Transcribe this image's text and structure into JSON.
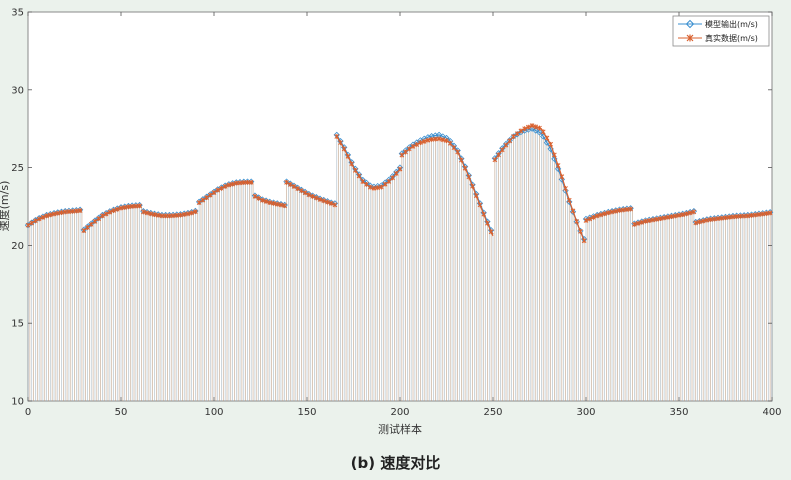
{
  "caption": "(b) 速度对比",
  "chart_data": {
    "type": "line",
    "xlabel": "测试样本",
    "ylabel": "速度(m/s)",
    "xlim": [
      0,
      400
    ],
    "ylim": [
      10,
      35
    ],
    "xticks": [
      0,
      50,
      100,
      150,
      200,
      250,
      300,
      350,
      400
    ],
    "yticks": [
      10,
      15,
      20,
      25,
      30,
      35
    ],
    "grid": false,
    "legend_position": "top-right",
    "series": [
      {
        "name": "模型输出(m/s)",
        "color": "#3a8fd0",
        "marker": "diamond",
        "segments": [
          {
            "x": [
              0,
              5,
              10,
              15,
              20,
              25,
              29
            ],
            "y": [
              21.3,
              21.7,
              21.95,
              22.1,
              22.2,
              22.25,
              22.3
            ]
          },
          {
            "x": [
              30,
              35,
              40,
              45,
              50,
              55,
              61
            ],
            "y": [
              21.0,
              21.5,
              21.95,
              22.25,
              22.45,
              22.55,
              22.6
            ]
          },
          {
            "x": [
              62,
              67,
              72,
              77,
              82,
              87,
              91
            ],
            "y": [
              22.2,
              22.05,
              21.95,
              21.95,
              22.0,
              22.1,
              22.25
            ]
          },
          {
            "x": [
              92,
              97,
              102,
              107,
              112,
              117,
              121
            ],
            "y": [
              22.8,
              23.2,
              23.6,
              23.9,
              24.05,
              24.1,
              24.1
            ]
          },
          {
            "x": [
              122,
              126,
              130,
              134,
              138
            ],
            "y": [
              23.2,
              22.95,
              22.8,
              22.7,
              22.6
            ]
          },
          {
            "x": [
              139,
              145,
              151,
              157,
              163,
              165
            ],
            "y": [
              24.1,
              23.7,
              23.3,
              23.0,
              22.75,
              22.7
            ]
          },
          {
            "x": [
              166,
              170,
              175,
              180,
              185,
              190,
              195,
              200
            ],
            "y": [
              27.1,
              26.3,
              25.1,
              24.2,
              23.75,
              23.85,
              24.3,
              25.0
            ]
          },
          {
            "x": [
              201,
              206,
              211,
              216,
              221,
              226,
              231,
              236,
              241,
              246,
              250
            ],
            "y": [
              25.9,
              26.4,
              26.75,
              27.0,
              27.1,
              26.85,
              26.1,
              24.8,
              23.3,
              21.8,
              20.7
            ]
          },
          {
            "x": [
              251,
              256,
              261,
              266,
              271,
              276,
              281,
              286,
              291,
              296,
              299
            ],
            "y": [
              25.6,
              26.4,
              27.0,
              27.35,
              27.5,
              27.2,
              26.2,
              24.6,
              22.8,
              21.2,
              20.4
            ]
          },
          {
            "x": [
              300,
              306,
              312,
              318,
              325
            ],
            "y": [
              21.7,
              21.95,
              22.15,
              22.3,
              22.4
            ]
          },
          {
            "x": [
              326,
              332,
              339,
              346,
              353,
              358
            ],
            "y": [
              21.4,
              21.6,
              21.75,
              21.9,
              22.05,
              22.2
            ]
          },
          {
            "x": [
              359,
              366,
              373,
              380,
              387,
              394,
              400
            ],
            "y": [
              21.5,
              21.7,
              21.8,
              21.9,
              21.95,
              22.05,
              22.15
            ]
          }
        ]
      },
      {
        "name": "真实数据(m/s)",
        "color": "#d9612f",
        "marker": "star",
        "segments": [
          {
            "x": [
              0,
              5,
              10,
              15,
              20,
              25,
              29
            ],
            "y": [
              21.3,
              21.65,
              21.9,
              22.05,
              22.15,
              22.2,
              22.25
            ]
          },
          {
            "x": [
              30,
              35,
              40,
              45,
              50,
              55,
              61
            ],
            "y": [
              20.95,
              21.45,
              21.9,
              22.2,
              22.4,
              22.5,
              22.55
            ]
          },
          {
            "x": [
              62,
              67,
              72,
              77,
              82,
              87,
              91
            ],
            "y": [
              22.15,
              22.0,
              21.9,
              21.9,
              21.95,
              22.05,
              22.2
            ]
          },
          {
            "x": [
              92,
              97,
              102,
              107,
              112,
              117,
              121
            ],
            "y": [
              22.75,
              23.15,
              23.55,
              23.85,
              24.0,
              24.05,
              24.05
            ]
          },
          {
            "x": [
              122,
              126,
              130,
              134,
              138
            ],
            "y": [
              23.15,
              22.9,
              22.75,
              22.65,
              22.55
            ]
          },
          {
            "x": [
              139,
              145,
              151,
              157,
              163,
              165
            ],
            "y": [
              24.05,
              23.65,
              23.25,
              22.95,
              22.7,
              22.6
            ]
          },
          {
            "x": [
              166,
              170,
              175,
              180,
              185,
              190,
              195,
              200
            ],
            "y": [
              27.0,
              26.2,
              25.0,
              24.1,
              23.65,
              23.75,
              24.2,
              24.9
            ]
          },
          {
            "x": [
              201,
              206,
              211,
              216,
              221,
              226,
              231,
              236,
              241,
              246,
              250
            ],
            "y": [
              25.8,
              26.3,
              26.6,
              26.8,
              26.85,
              26.7,
              26.0,
              24.7,
              23.2,
              21.7,
              20.6
            ]
          },
          {
            "x": [
              251,
              256,
              261,
              266,
              271,
              276,
              281,
              286,
              291,
              296,
              299
            ],
            "y": [
              25.5,
              26.3,
              27.0,
              27.45,
              27.7,
              27.5,
              26.5,
              24.8,
              22.9,
              21.2,
              20.3
            ]
          },
          {
            "x": [
              300,
              306,
              312,
              318,
              325
            ],
            "y": [
              21.6,
              21.9,
              22.1,
              22.25,
              22.35
            ]
          },
          {
            "x": [
              326,
              332,
              339,
              346,
              353,
              358
            ],
            "y": [
              21.35,
              21.55,
              21.7,
              21.85,
              22.0,
              22.15
            ]
          },
          {
            "x": [
              359,
              366,
              373,
              380,
              387,
              394,
              400
            ],
            "y": [
              21.45,
              21.65,
              21.75,
              21.85,
              21.9,
              22.0,
              22.1
            ]
          }
        ]
      }
    ]
  }
}
